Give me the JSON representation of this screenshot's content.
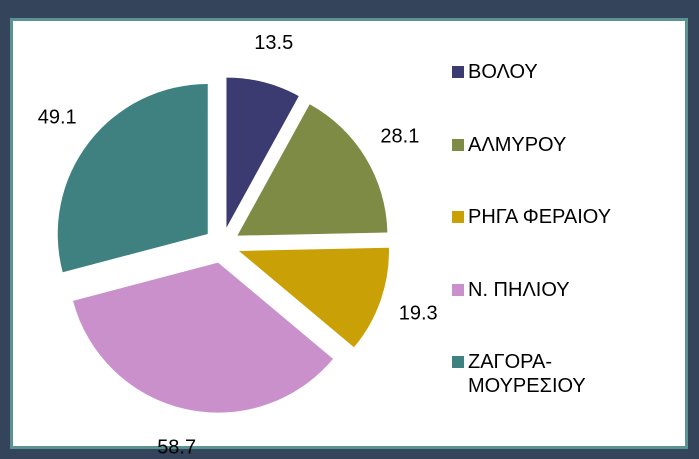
{
  "chart_data": {
    "type": "pie",
    "categories": [
      "ΒΟΛΟΥ",
      "ΑΛΜΥΡΟΥ",
      "ΡΗΓΑ ΦΕΡΑΙΟΥ",
      "Ν. ΠΗΛΙΟΥ",
      "ΖΑΓΟΡΑ-ΜΟΥΡΕΣΙΟΥ"
    ],
    "values": [
      13.5,
      28.1,
      19.3,
      58.7,
      49.1
    ],
    "colors": [
      "#3b3b72",
      "#7d8b45",
      "#c9a006",
      "#c990cc",
      "#3f8181"
    ],
    "legend": "right"
  }
}
